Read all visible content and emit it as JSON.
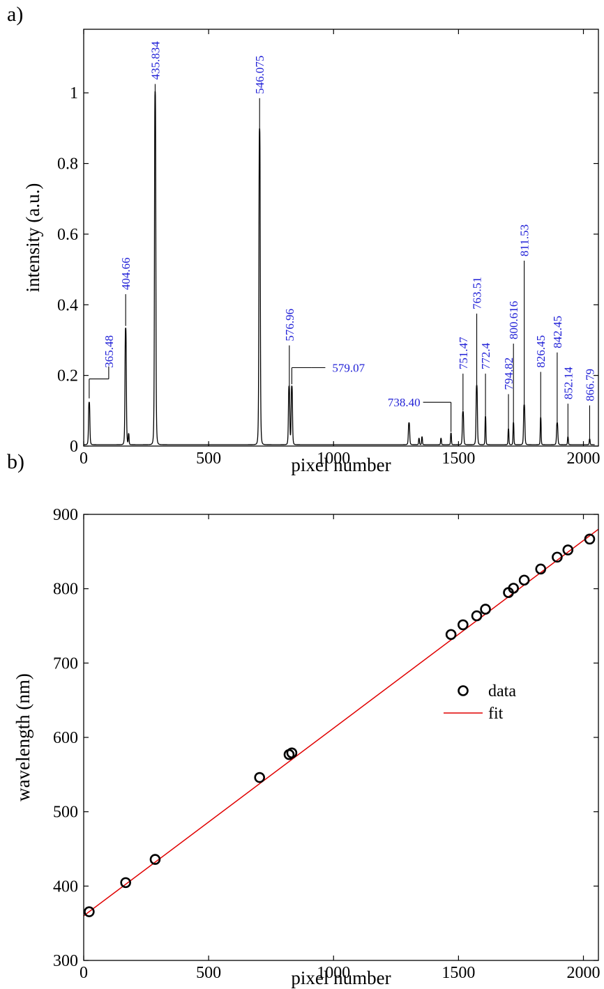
{
  "panel_labels": {
    "a": "a)",
    "b": "b)"
  },
  "colors": {
    "spectrum": "#000000",
    "peak_label": "#1f1fd6",
    "fit_line": "#e00000",
    "data_marker": "#000000"
  },
  "chart_data": [
    {
      "type": "line",
      "xlabel": "pixel number",
      "ylabel": "intensity (a.u.)",
      "xlim": [
        0,
        2060
      ],
      "ylim": [
        0,
        1.18
      ],
      "xticks": [
        0,
        500,
        1000,
        1500,
        2000
      ],
      "yticks": [
        0,
        0.2,
        0.4,
        0.6,
        0.8,
        1
      ],
      "ytick_labels": [
        "0",
        "0.2",
        "0.4",
        "0.6",
        "0.8",
        "1"
      ],
      "grid": false,
      "series": [
        {
          "peaks": [
            {
              "x": 22,
              "height": 0.12,
              "width": 3
            },
            {
              "x": 168,
              "height": 0.33,
              "width": 3
            },
            {
              "x": 180,
              "height": 0.03,
              "width": 2
            },
            {
              "x": 286,
              "height": 1.0,
              "width": 3
            },
            {
              "x": 704,
              "height": 0.895,
              "width": 3
            },
            {
              "x": 822,
              "height": 0.165,
              "width": 3
            },
            {
              "x": 833,
              "height": 0.165,
              "width": 3
            },
            {
              "x": 1302,
              "height": 0.062,
              "width": 3
            },
            {
              "x": 1342,
              "height": 0.018,
              "width": 2
            },
            {
              "x": 1354,
              "height": 0.022,
              "width": 2
            },
            {
              "x": 1430,
              "height": 0.018,
              "width": 2
            },
            {
              "x": 1470,
              "height": 0.033,
              "width": 2
            },
            {
              "x": 1518,
              "height": 0.094,
              "width": 3
            },
            {
              "x": 1573,
              "height": 0.168,
              "width": 3
            },
            {
              "x": 1608,
              "height": 0.08,
              "width": 2
            },
            {
              "x": 1700,
              "height": 0.045,
              "width": 2
            },
            {
              "x": 1720,
              "height": 0.063,
              "width": 2
            },
            {
              "x": 1763,
              "height": 0.113,
              "width": 3
            },
            {
              "x": 1829,
              "height": 0.077,
              "width": 2
            },
            {
              "x": 1895,
              "height": 0.062,
              "width": 3
            },
            {
              "x": 1938,
              "height": 0.022,
              "width": 2
            },
            {
              "x": 2025,
              "height": 0.016,
              "width": 2
            }
          ],
          "baseline": 0.004
        }
      ],
      "annotations": [
        {
          "text": "365.48",
          "x": 22,
          "y_bottom": 0.135,
          "y_top": 0.19,
          "leader": "right"
        },
        {
          "text": "404.66",
          "x": 168,
          "y_bottom": 0.34,
          "y_top": 0.43
        },
        {
          "text": "435.834",
          "x": 286,
          "y_bottom": 1.0,
          "y_top": 1.025
        },
        {
          "text": "546.075",
          "x": 704,
          "y_bottom": 0.9,
          "y_top": 0.985
        },
        {
          "text": "576.96",
          "x": 823,
          "y_bottom": 0.17,
          "y_top": 0.285
        },
        {
          "text": "579.07",
          "x": 833,
          "y_bottom": 0.175,
          "y_top": 0.222,
          "leader": "right"
        },
        {
          "text": "738.40",
          "x": 1470,
          "y_bottom": 0.04,
          "y_top": 0.124,
          "leader": "left"
        },
        {
          "text": "751.47",
          "x": 1518,
          "y_bottom": 0.1,
          "y_top": 0.205
        },
        {
          "text": "763.51",
          "x": 1573,
          "y_bottom": 0.172,
          "y_top": 0.375
        },
        {
          "text": "772.4",
          "x": 1608,
          "y_bottom": 0.085,
          "y_top": 0.205
        },
        {
          "text": "794.82",
          "x": 1700,
          "y_bottom": 0.05,
          "y_top": 0.147
        },
        {
          "text": "800.616",
          "x": 1720,
          "y_bottom": 0.068,
          "y_top": 0.29
        },
        {
          "text": "811.53",
          "x": 1763,
          "y_bottom": 0.118,
          "y_top": 0.525
        },
        {
          "text": "826.45",
          "x": 1829,
          "y_bottom": 0.082,
          "y_top": 0.21
        },
        {
          "text": "842.45",
          "x": 1895,
          "y_bottom": 0.066,
          "y_top": 0.265
        },
        {
          "text": "852.14",
          "x": 1938,
          "y_bottom": 0.026,
          "y_top": 0.12
        },
        {
          "text": "866.79",
          "x": 2025,
          "y_bottom": 0.02,
          "y_top": 0.115
        }
      ]
    },
    {
      "type": "scatter",
      "xlabel": "pixel number",
      "ylabel": "wavelength (nm)",
      "xlim": [
        0,
        2060
      ],
      "ylim": [
        300,
        900
      ],
      "xticks": [
        0,
        500,
        1000,
        1500,
        2000
      ],
      "yticks": [
        300,
        400,
        500,
        600,
        700,
        800,
        900
      ],
      "grid": false,
      "legend": {
        "placement": "right-middle"
      },
      "series": [
        {
          "name": "data",
          "style": "open-circle",
          "x": [
            22,
            168,
            286,
            704,
            822,
            833,
            1470,
            1518,
            1573,
            1608,
            1700,
            1720,
            1763,
            1829,
            1895,
            1938,
            2025
          ],
          "y": [
            365.48,
            404.66,
            435.834,
            546.075,
            576.96,
            579.07,
            738.4,
            751.47,
            763.51,
            772.4,
            794.82,
            800.616,
            811.53,
            826.45,
            842.45,
            852.14,
            866.79
          ]
        },
        {
          "name": "fit",
          "style": "line",
          "x": [
            0,
            2060
          ],
          "y": [
            360,
            880
          ]
        }
      ]
    }
  ]
}
